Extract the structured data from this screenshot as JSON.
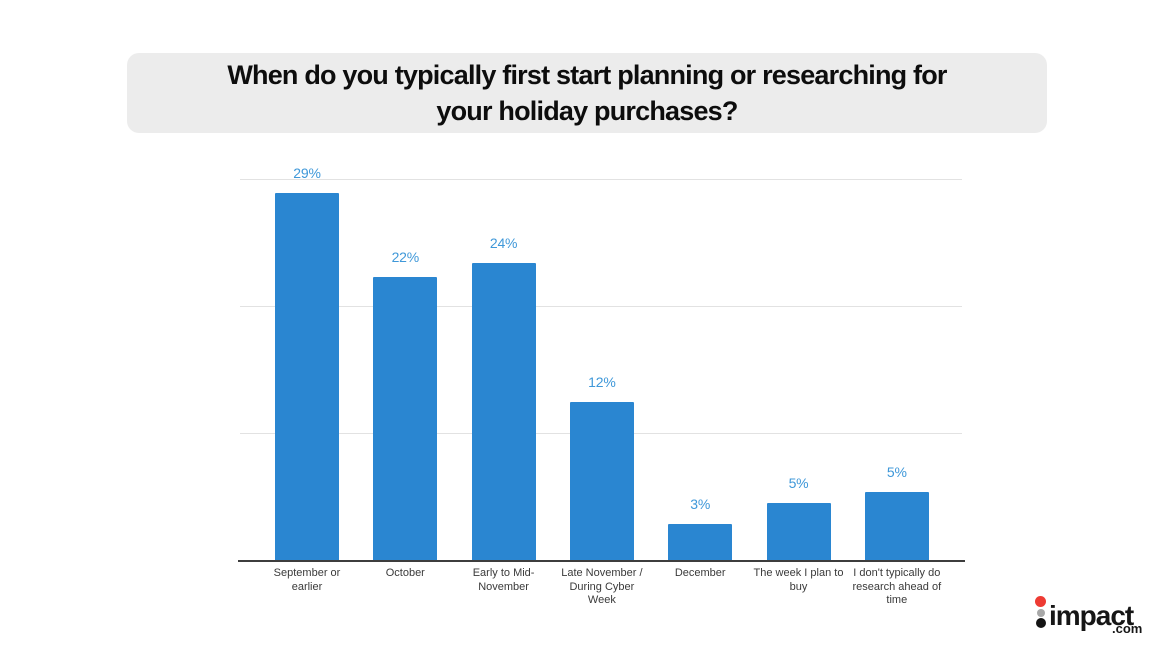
{
  "title": "When do you typically first start planning or researching for\nyour holiday purchases?",
  "chart_data": {
    "type": "bar",
    "title": "When do you typically first start planning or researching for your holiday purchases?",
    "categories": [
      "September or\nearlier",
      "October",
      "Early to Mid-\nNovember",
      "Late November /\nDuring Cyber\nWeek",
      "December",
      "The week I plan to\nbuy",
      "I don't typically do\nresearch ahead of\ntime"
    ],
    "values": [
      29,
      22,
      24,
      12,
      3,
      5,
      5
    ],
    "value_labels": [
      "29%",
      "22%",
      "24%",
      "12%",
      "3%",
      "5%",
      "5%"
    ],
    "bar_render_pct": [
      29,
      22.4,
      23.5,
      12.5,
      2.9,
      4.6,
      5.4
    ],
    "unit": "%",
    "xlabel": "",
    "ylabel": "",
    "ylim": [
      0,
      30
    ],
    "gridline_values": [
      10,
      20,
      30
    ],
    "grid": true,
    "legend": "none",
    "colors": {
      "bar": "#2a86d1",
      "value_label": "#3f98d9",
      "category_label": "#3a3a3a",
      "gridline": "#e2e2e2",
      "axis_line": "#3d3d3d",
      "title_bg": "#ececec",
      "title_text": "#0d0d0d",
      "background": "#ffffff"
    }
  },
  "logo": {
    "name": "impact.com",
    "text": "impact",
    "suffix": ".com",
    "dots": [
      "#ee3b33",
      "#a8a8a8",
      "#141414"
    ]
  }
}
